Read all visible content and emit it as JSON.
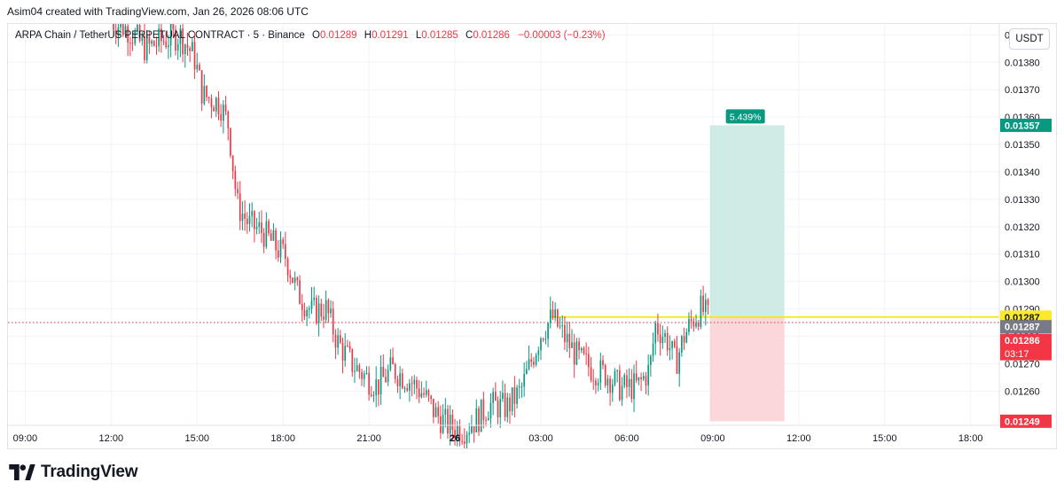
{
  "credit": "Asim04 created with TradingView.com, Jan 26, 2026 08:06 UTC",
  "legend": {
    "symbol": "ARPA Chain / TetherUS PERPETUAL CONTRACT · 5 · Binance",
    "open_key": "O",
    "open": "0.01289",
    "high_key": "H",
    "high": "0.01291",
    "low_key": "L",
    "low": "0.01285",
    "close_key": "C",
    "close": "0.01286",
    "change": "−0.00003 (−0.23%)"
  },
  "currency_button": "USDT",
  "brand_name": "TradingView",
  "colors": {
    "up": "#089981",
    "down": "#f23645",
    "grid": "#f0f3fa",
    "axis_text": "#131722",
    "entry_line": "#f5e90a",
    "profit_zone": "#cfebe6",
    "loss_zone": "#fbd7da",
    "yellow_tag": "#fbe92b",
    "grey_tag": "#787b86",
    "green_tag": "#089981",
    "red_tag": "#f23645"
  },
  "chart_data": {
    "type": "candlestick",
    "instrument": "ARPA Chain / TetherUS PERPETUAL CONTRACT",
    "interval": "5",
    "exchange": "Binance",
    "ohlc_last": {
      "open": 0.01289,
      "high": 0.01291,
      "low": 0.01285,
      "close": 0.01286,
      "change": -3e-05,
      "change_pct": -0.23
    },
    "y_axis": {
      "ticks": [
        "0.01390",
        "0.01380",
        "0.01370",
        "0.01360",
        "0.01350",
        "0.01340",
        "0.01330",
        "0.01320",
        "0.01310",
        "0.01300",
        "0.01290",
        "0.01280",
        "0.01270",
        "0.01260"
      ],
      "range": [
        0.012475,
        0.01394
      ]
    },
    "x_axis": {
      "ticks": [
        "09:00",
        "12:00",
        "15:00",
        "18:00",
        "21:00",
        "26",
        "03:00",
        "06:00",
        "09:00",
        "12:00",
        "15:00",
        "18:00"
      ],
      "tick_hours": [
        9,
        12,
        15,
        18,
        21,
        24,
        27,
        30,
        33,
        36,
        39,
        42
      ],
      "range_hours": [
        8.4,
        43.0
      ]
    },
    "price_path": [
      [
        12.0,
        0.01395
      ],
      [
        12.6,
        0.01392
      ],
      [
        13.2,
        0.01385
      ],
      [
        13.8,
        0.01388
      ],
      [
        14.4,
        0.0139
      ],
      [
        14.9,
        0.01382
      ],
      [
        15.2,
        0.01368
      ],
      [
        15.8,
        0.01365
      ],
      [
        16.1,
        0.01357
      ],
      [
        16.4,
        0.01328
      ],
      [
        16.8,
        0.01321
      ],
      [
        17.3,
        0.01318
      ],
      [
        17.8,
        0.01312
      ],
      [
        18.1,
        0.01309
      ],
      [
        18.5,
        0.01296
      ],
      [
        19.0,
        0.01289
      ],
      [
        19.5,
        0.0129
      ],
      [
        19.9,
        0.01278
      ],
      [
        20.4,
        0.0127
      ],
      [
        20.9,
        0.01265
      ],
      [
        21.3,
        0.01262
      ],
      [
        21.8,
        0.01268
      ],
      [
        22.4,
        0.01264
      ],
      [
        22.9,
        0.01259
      ],
      [
        23.3,
        0.01252
      ],
      [
        23.8,
        0.01247
      ],
      [
        24.3,
        0.01246
      ],
      [
        24.8,
        0.0125
      ],
      [
        25.2,
        0.01255
      ],
      [
        25.8,
        0.01254
      ],
      [
        26.3,
        0.0126
      ],
      [
        26.7,
        0.01272
      ],
      [
        27.0,
        0.01281
      ],
      [
        27.4,
        0.01287
      ],
      [
        27.8,
        0.0128
      ],
      [
        28.3,
        0.01272
      ],
      [
        28.8,
        0.01268
      ],
      [
        29.3,
        0.01266
      ],
      [
        29.8,
        0.01261
      ],
      [
        30.4,
        0.01262
      ],
      [
        30.8,
        0.01268
      ],
      [
        31.0,
        0.01284
      ],
      [
        31.4,
        0.01279
      ],
      [
        31.7,
        0.0127
      ],
      [
        32.0,
        0.0128
      ],
      [
        32.3,
        0.01286
      ],
      [
        32.6,
        0.0129
      ],
      [
        32.9,
        0.01286
      ]
    ],
    "position_tool": {
      "entry": 0.01287,
      "target": 0.01357,
      "stop": 0.01249,
      "start_hour": 32.9,
      "end_hour": 35.5,
      "profit_label": "5.439%"
    },
    "price_tags": [
      {
        "label": "0.01357",
        "value": 0.01357,
        "color": "green_tag"
      },
      {
        "label": "0.01287",
        "value": 0.01287,
        "color": "yellow_tag"
      },
      {
        "label": "0.01287",
        "value": 0.012835,
        "color": "grey_tag"
      },
      {
        "label": "0.01286",
        "value": 0.012785,
        "color": "red_tag",
        "countdown": "03:17"
      },
      {
        "label": "0.01249",
        "value": 0.01249,
        "color": "red_tag"
      }
    ],
    "last_price": 0.01286,
    "grid": true
  }
}
